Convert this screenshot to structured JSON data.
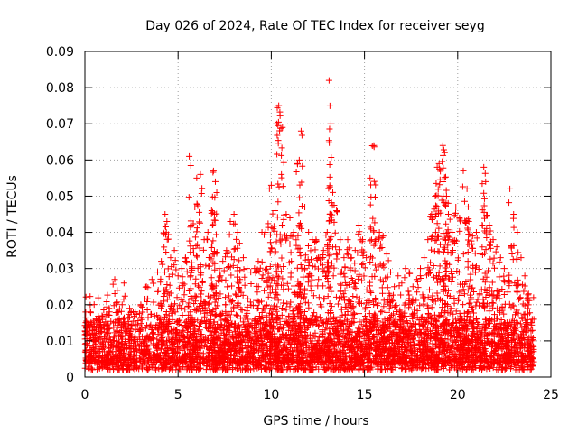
{
  "chart_data": {
    "type": "scatter",
    "title": "Day 026 of 2024, Rate Of TEC Index for receiver seyg",
    "xlabel": "GPS time / hours",
    "ylabel": "ROTI / TECUs",
    "xlim": [
      0,
      25
    ],
    "ylim": [
      0,
      0.09
    ],
    "xticks": [
      0,
      5,
      10,
      15,
      20,
      25
    ],
    "xtick_labels": [
      "0",
      "5",
      "10",
      "15",
      "20",
      "25"
    ],
    "yticks": [
      0,
      0.01,
      0.02,
      0.03,
      0.04,
      0.05,
      0.06,
      0.07,
      0.08,
      0.09
    ],
    "ytick_labels": [
      "0",
      "0.01",
      "0.02",
      "0.03",
      "0.04",
      "0.05",
      "0.06",
      "0.07",
      "0.08",
      "0.09"
    ],
    "grid": true,
    "marker": "+",
    "color": "#ff0000",
    "series": [
      {
        "name": "ROTI",
        "x": [
          0.1,
          0.3,
          0.5,
          0.8,
          1.0,
          1.3,
          1.6,
          1.8,
          2.1,
          2.4,
          2.7,
          3.0,
          3.3,
          3.6,
          3.9,
          4.1,
          4.3,
          4.4,
          4.6,
          4.8,
          5.0,
          5.2,
          5.4,
          5.6,
          5.7,
          5.9,
          6.0,
          6.2,
          6.4,
          6.6,
          6.8,
          6.9,
          7.0,
          7.2,
          7.4,
          7.6,
          7.8,
          8.0,
          8.2,
          8.3,
          8.5,
          8.7,
          8.9,
          9.1,
          9.3,
          9.5,
          9.7,
          9.9,
          10.0,
          10.2,
          10.3,
          10.4,
          10.6,
          10.8,
          11.0,
          11.2,
          11.4,
          11.5,
          11.6,
          11.8,
          12.0,
          12.2,
          12.4,
          12.6,
          12.8,
          13.0,
          13.1,
          13.2,
          13.3,
          13.5,
          13.7,
          13.9,
          14.1,
          14.3,
          14.5,
          14.7,
          14.9,
          15.1,
          15.3,
          15.5,
          15.6,
          15.8,
          16.0,
          16.2,
          16.4,
          16.6,
          16.8,
          17.0,
          17.2,
          17.4,
          17.6,
          17.8,
          18.0,
          18.2,
          18.4,
          18.6,
          18.8,
          18.9,
          19.0,
          19.2,
          19.3,
          19.4,
          19.5,
          19.7,
          19.9,
          20.1,
          20.3,
          20.5,
          20.6,
          20.8,
          21.0,
          21.2,
          21.4,
          21.5,
          21.7,
          21.9,
          22.1,
          22.3,
          22.5,
          22.7,
          22.8,
          23.0,
          23.2,
          23.4,
          23.6,
          23.8,
          24.0
        ],
        "y": [
          0.015,
          0.018,
          0.012,
          0.016,
          0.014,
          0.019,
          0.027,
          0.018,
          0.026,
          0.019,
          0.018,
          0.02,
          0.025,
          0.027,
          0.029,
          0.032,
          0.045,
          0.043,
          0.033,
          0.035,
          0.028,
          0.03,
          0.033,
          0.061,
          0.042,
          0.047,
          0.055,
          0.056,
          0.038,
          0.04,
          0.046,
          0.057,
          0.054,
          0.03,
          0.032,
          0.035,
          0.043,
          0.045,
          0.04,
          0.037,
          0.033,
          0.03,
          0.029,
          0.03,
          0.032,
          0.04,
          0.04,
          0.052,
          0.053,
          0.046,
          0.07,
          0.075,
          0.069,
          0.045,
          0.044,
          0.04,
          0.059,
          0.06,
          0.068,
          0.047,
          0.04,
          0.038,
          0.038,
          0.033,
          0.035,
          0.04,
          0.082,
          0.07,
          0.051,
          0.046,
          0.038,
          0.033,
          0.038,
          0.033,
          0.035,
          0.042,
          0.038,
          0.033,
          0.055,
          0.064,
          0.038,
          0.04,
          0.039,
          0.034,
          0.029,
          0.025,
          0.028,
          0.026,
          0.03,
          0.029,
          0.025,
          0.027,
          0.03,
          0.033,
          0.038,
          0.045,
          0.05,
          0.058,
          0.059,
          0.064,
          0.062,
          0.05,
          0.045,
          0.04,
          0.047,
          0.044,
          0.057,
          0.052,
          0.043,
          0.039,
          0.04,
          0.034,
          0.058,
          0.054,
          0.042,
          0.038,
          0.036,
          0.033,
          0.03,
          0.029,
          0.052,
          0.045,
          0.04,
          0.033,
          0.028,
          0.023,
          0.016
        ],
        "baseline_band": [
          0.002,
          0.016
        ]
      }
    ]
  }
}
